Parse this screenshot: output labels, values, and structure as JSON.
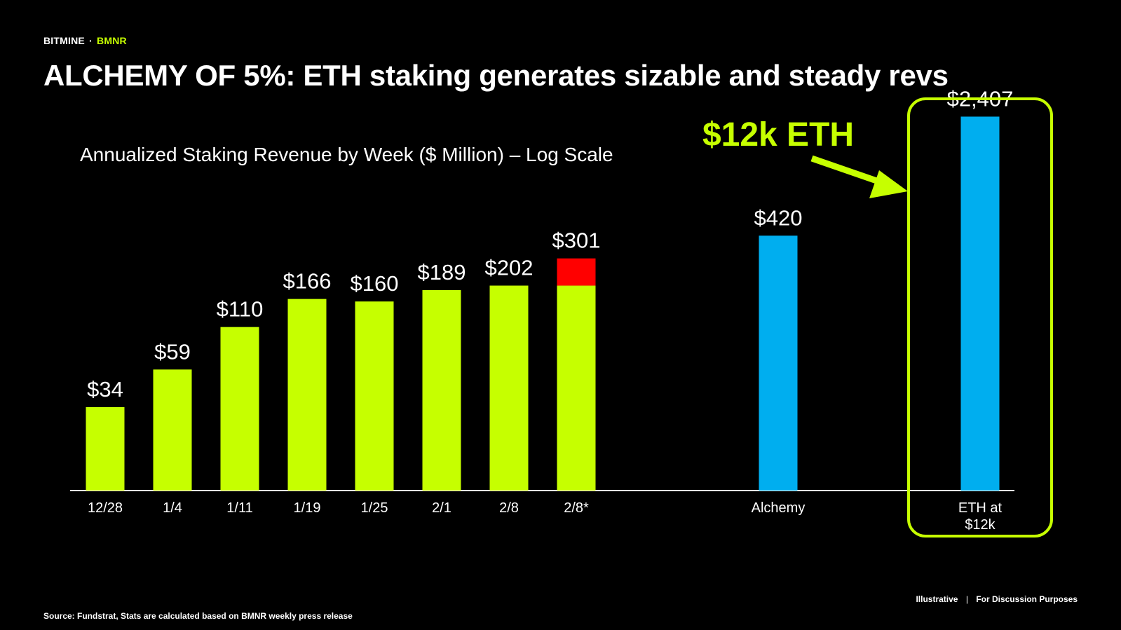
{
  "header": {
    "brand": "BITMINE",
    "separator": "·",
    "ticker": "BMNR",
    "title": "ALCHEMY OF 5%: ETH staking generates sizable and steady revs"
  },
  "footer": {
    "source": "Source: Fundstrat, Stats are calculated based on BMNR weekly press release",
    "note_left": "Illustrative",
    "note_sep": "|",
    "note_right": "For Discussion Purposes"
  },
  "colors": {
    "green": "#C6FF00",
    "red": "#FF0000",
    "blue": "#00AEEF",
    "text": "#FFFFFF",
    "background": "#000000"
  },
  "chart_data": {
    "type": "bar",
    "title": "Annualized Staking Revenue by Week ($ Million) – Log Scale",
    "scale": "log",
    "ylim": [
      10,
      3500
    ],
    "bars": [
      {
        "category": "12/28",
        "value": 34,
        "label": "$34",
        "color": "green"
      },
      {
        "category": "1/4",
        "value": 59,
        "label": "$59",
        "color": "green"
      },
      {
        "category": "1/11",
        "value": 110,
        "label": "$110",
        "color": "green"
      },
      {
        "category": "1/19",
        "value": 166,
        "label": "$166",
        "color": "green"
      },
      {
        "category": "1/25",
        "value": 160,
        "label": "$160",
        "color": "green"
      },
      {
        "category": "2/1",
        "value": 189,
        "label": "$189",
        "color": "green"
      },
      {
        "category": "2/8",
        "value": 202,
        "label": "$202",
        "color": "green"
      },
      {
        "category": "2/8*",
        "value": 301,
        "label": "$301",
        "color": "green",
        "stacked_base": 202,
        "stack_top_color": "red"
      },
      {
        "category": "Alchemy",
        "value": 420,
        "label": "$420",
        "color": "blue"
      },
      {
        "category": "ETH at $12k",
        "category_lines": [
          "ETH at",
          "$12k"
        ],
        "value": 2407,
        "label": "$2,407",
        "color": "blue"
      }
    ],
    "annotation": {
      "text": "$12k ETH",
      "target_category": "ETH at $12k"
    }
  }
}
